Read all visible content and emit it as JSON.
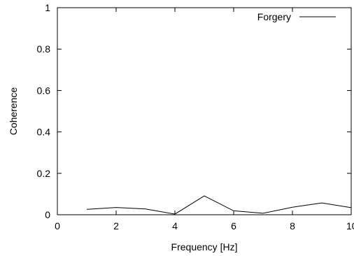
{
  "chart_data": {
    "type": "line",
    "title": "",
    "xlabel": "Frequency [Hz]",
    "ylabel": "Coherence",
    "xlim": [
      0,
      10
    ],
    "ylim": [
      0,
      1
    ],
    "x_ticks": [
      0,
      2,
      4,
      6,
      8,
      10
    ],
    "x_tick_labels": [
      "0",
      "2",
      "4",
      "6",
      "8",
      "10"
    ],
    "y_ticks": [
      0,
      0.2,
      0.4,
      0.6,
      0.8,
      1
    ],
    "y_tick_labels": [
      "0",
      "0.2",
      "0.4",
      "0.6",
      "0.8",
      "1"
    ],
    "grid": false,
    "legend_position": "top-right",
    "series": [
      {
        "name": "Forgery",
        "color": "#000000",
        "x": [
          1,
          2,
          3,
          4,
          5,
          6,
          7,
          8,
          9,
          10
        ],
        "y": [
          0.026,
          0.035,
          0.028,
          0.003,
          0.091,
          0.019,
          0.007,
          0.036,
          0.057,
          0.034
        ]
      }
    ]
  }
}
